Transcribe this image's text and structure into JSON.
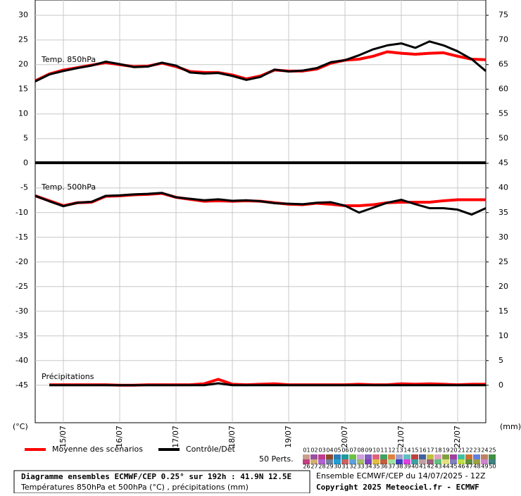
{
  "chart_data": {
    "type": "line",
    "title": "Diagramme ensembles ECMWF/CEP 0.25° sur 192h : 41.9N 12.5E",
    "subtitle": "Températures 850hPa et 500hPa (°C) , précipitations (mm)",
    "run_label": "Ensemble ECMWF/CEP du 14/07/2025 - 12Z",
    "copyright": "Copyright 2025 Meteociel.fr - ECMWF",
    "y_label": "(°C)",
    "y2_label": "(mm)",
    "annotations": [
      "Temp. 850hPa",
      "Temp. 500hPa",
      "Précipitations"
    ],
    "categories": [
      null,
      null,
      "15/07",
      null,
      null,
      null,
      "16/07",
      null,
      null,
      null,
      "17/07",
      null,
      null,
      null,
      "18/07",
      null,
      null,
      null,
      "19/07",
      null,
      null,
      null,
      "20/07",
      null,
      null,
      null,
      "21/07",
      null,
      null,
      null,
      "22/07",
      null,
      null
    ],
    "ylim": [
      -52.6,
      33.1
    ],
    "yticks": [
      30,
      25,
      20,
      15,
      10,
      5,
      0,
      -5,
      -10,
      -15,
      -20,
      -25,
      -30,
      -35,
      -40,
      -45
    ],
    "y2lim": [
      -7.6,
      78.1
    ],
    "y2ticks": [
      75,
      70,
      65,
      60,
      55,
      50,
      45,
      40,
      35,
      30,
      25,
      20,
      15,
      10,
      5,
      0
    ],
    "grid": true,
    "series": [
      {
        "name": "Moyenne des scénarios",
        "color": "#ff0000",
        "width": 4,
        "values": [
          16.7,
          18.1,
          18.9,
          19.4,
          19.9,
          20.4,
          20.0,
          19.6,
          19.7,
          20.3,
          19.6,
          18.6,
          18.4,
          18.4,
          17.9,
          17.1,
          17.7,
          18.9,
          18.7,
          18.7,
          19.1,
          20.3,
          20.9,
          21.1,
          21.7,
          22.6,
          22.3,
          22.1,
          22.3,
          22.4,
          21.7,
          21.1,
          21.0
        ]
      },
      {
        "name": "Contrôle/Det",
        "color": "#000000",
        "width": 3,
        "values": [
          16.6,
          18.0,
          18.7,
          19.3,
          19.8,
          20.6,
          20.1,
          19.5,
          19.6,
          20.4,
          19.8,
          18.4,
          18.2,
          18.3,
          17.7,
          16.9,
          17.5,
          19.0,
          18.6,
          18.8,
          19.3,
          20.5,
          20.9,
          21.9,
          23.1,
          23.9,
          24.3,
          23.4,
          24.7,
          23.9,
          22.7,
          21.1,
          18.7
        ]
      },
      {
        "name": "Moyenne des scénarios",
        "color": "#ff0000",
        "width": 4,
        "values": [
          -6.6,
          -7.6,
          -8.6,
          -8.0,
          -7.9,
          -6.7,
          -6.6,
          -6.4,
          -6.3,
          -6.1,
          -6.9,
          -7.3,
          -7.7,
          -7.6,
          -7.7,
          -7.6,
          -7.7,
          -8.0,
          -8.3,
          -8.4,
          -8.1,
          -8.3,
          -8.6,
          -8.6,
          -8.4,
          -8.0,
          -7.9,
          -7.9,
          -7.9,
          -7.6,
          -7.4,
          -7.4,
          -7.4
        ]
      },
      {
        "name": "Contrôle/Det",
        "color": "#000000",
        "width": 3,
        "values": [
          -6.6,
          -7.7,
          -8.7,
          -8.0,
          -7.8,
          -6.6,
          -6.5,
          -6.3,
          -6.2,
          -6.0,
          -6.9,
          -7.2,
          -7.5,
          -7.3,
          -7.6,
          -7.5,
          -7.7,
          -8.1,
          -8.2,
          -8.3,
          -8.0,
          -7.9,
          -8.6,
          -10.0,
          -9.0,
          -8.0,
          -7.4,
          -8.3,
          -9.1,
          -9.1,
          -9.4,
          -10.4,
          -9.1
        ]
      },
      {
        "name": "Moyenne des scénarios",
        "color": "#ff0000",
        "width": 4,
        "axis": "y2",
        "values": [
          null,
          0.1,
          0.1,
          0.1,
          0.1,
          0.1,
          0.0,
          0.0,
          0.1,
          0.1,
          0.1,
          0.1,
          0.3,
          1.2,
          0.2,
          0.1,
          0.2,
          0.3,
          0.1,
          0.1,
          0.1,
          0.1,
          0.1,
          0.2,
          0.1,
          0.1,
          0.3,
          0.2,
          0.3,
          0.2,
          0.1,
          0.2,
          0.2
        ]
      },
      {
        "name": "Contrôle/Det",
        "color": "#000000",
        "width": 3,
        "axis": "y2",
        "values": [
          null,
          0.0,
          0.0,
          0.0,
          0.0,
          0.0,
          0.0,
          0.0,
          0.0,
          0.0,
          0.0,
          0.0,
          0.0,
          0.4,
          0.0,
          0.0,
          0.0,
          0.0,
          0.0,
          0.0,
          0.0,
          0.0,
          0.0,
          0.0,
          0.0,
          0.0,
          0.0,
          0.0,
          0.0,
          0.0,
          0.0,
          0.0,
          0.0
        ]
      }
    ],
    "perts_label": "50 Perts.",
    "perts": [
      {
        "label": "01",
        "color": "#c8a08c"
      },
      {
        "label": "02",
        "color": "#9a4fa0"
      },
      {
        "label": "03",
        "color": "#c03c8c"
      },
      {
        "label": "04",
        "color": "#8c4a2a"
      },
      {
        "label": "05",
        "color": "#2a7ab8"
      },
      {
        "label": "06",
        "color": "#1e9a9a"
      },
      {
        "label": "07",
        "color": "#70c040"
      },
      {
        "label": "08",
        "color": "#d0a0e0"
      },
      {
        "label": "09",
        "color": "#8060c0"
      },
      {
        "label": "10",
        "color": "#e06080"
      },
      {
        "label": "11",
        "color": "#40a060"
      },
      {
        "label": "12",
        "color": "#e08040"
      },
      {
        "label": "13",
        "color": "#a0a0d0"
      },
      {
        "label": "14",
        "color": "#60c0c0"
      },
      {
        "label": "15",
        "color": "#c04040"
      },
      {
        "label": "16",
        "color": "#4060a0"
      },
      {
        "label": "17",
        "color": "#c0c040"
      },
      {
        "label": "18",
        "color": "#e0a0c0"
      },
      {
        "label": "19",
        "color": "#80a040"
      },
      {
        "label": "20",
        "color": "#a040a0"
      },
      {
        "label": "21",
        "color": "#40c0a0"
      },
      {
        "label": "22",
        "color": "#d07030"
      },
      {
        "label": "23",
        "color": "#6080e0"
      },
      {
        "label": "24",
        "color": "#c08060"
      },
      {
        "label": "25",
        "color": "#409040"
      },
      {
        "label": "26",
        "color": "#c04080"
      },
      {
        "label": "27",
        "color": "#d0b070"
      },
      {
        "label": "28",
        "color": "#b060d0"
      },
      {
        "label": "29",
        "color": "#7080a0"
      },
      {
        "label": "30",
        "color": "#20a0d0"
      },
      {
        "label": "31",
        "color": "#d06060"
      },
      {
        "label": "32",
        "color": "#60a0e0"
      },
      {
        "label": "33",
        "color": "#a0c060"
      },
      {
        "label": "34",
        "color": "#8040c0"
      },
      {
        "label": "35",
        "color": "#e0c040"
      },
      {
        "label": "36",
        "color": "#c06040"
      },
      {
        "label": "37",
        "color": "#a0e0a0"
      },
      {
        "label": "38",
        "color": "#4040c0"
      },
      {
        "label": "39",
        "color": "#e040e0"
      },
      {
        "label": "40",
        "color": "#40a0a0"
      },
      {
        "label": "41",
        "color": "#c0a0a0"
      },
      {
        "label": "42",
        "color": "#a06080"
      },
      {
        "label": "43",
        "color": "#60c080"
      },
      {
        "label": "44",
        "color": "#e0e080"
      },
      {
        "label": "45",
        "color": "#8080c0"
      },
      {
        "label": "46",
        "color": "#c0e040"
      },
      {
        "label": "47",
        "color": "#609040"
      },
      {
        "label": "48",
        "color": "#a0a040"
      },
      {
        "label": "49",
        "color": "#d080d0"
      },
      {
        "label": "50",
        "color": "#408080"
      }
    ]
  }
}
